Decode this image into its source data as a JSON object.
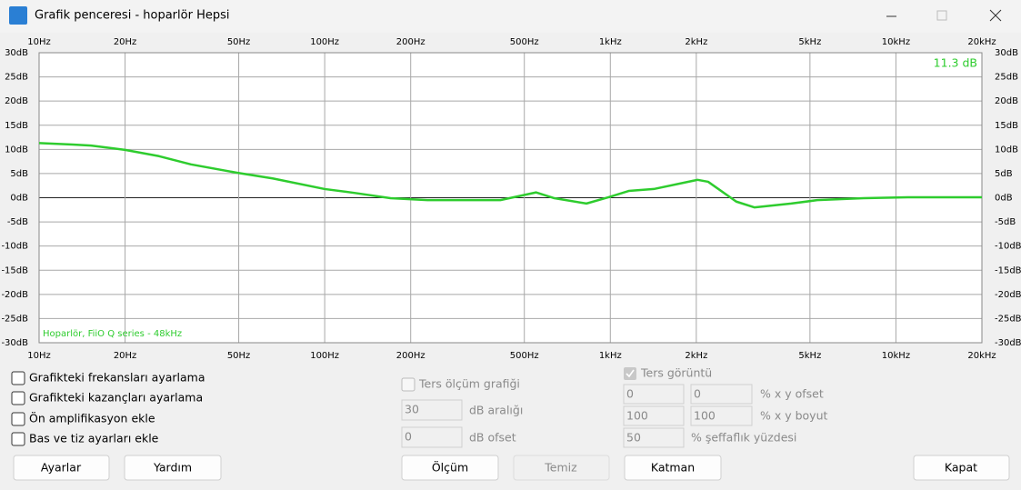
{
  "window": {
    "title": "Grafik penceresi - hoparlör Hepsi"
  },
  "chart_data": {
    "type": "line",
    "xscale": "log",
    "xlim": [
      10,
      20000
    ],
    "ylim": [
      -30,
      30
    ],
    "xticks": [
      {
        "value": 10,
        "label": "10Hz"
      },
      {
        "value": 20,
        "label": "20Hz"
      },
      {
        "value": 50,
        "label": "50Hz"
      },
      {
        "value": 100,
        "label": "100Hz"
      },
      {
        "value": 200,
        "label": "200Hz"
      },
      {
        "value": 500,
        "label": "500Hz"
      },
      {
        "value": 1000,
        "label": "1kHz"
      },
      {
        "value": 2000,
        "label": "2kHz"
      },
      {
        "value": 5000,
        "label": "5kHz"
      },
      {
        "value": 10000,
        "label": "10kHz"
      },
      {
        "value": 20000,
        "label": "20kHz"
      }
    ],
    "yticks": [
      {
        "value": 30,
        "label": "30dB"
      },
      {
        "value": 25,
        "label": "25dB"
      },
      {
        "value": 20,
        "label": "20dB"
      },
      {
        "value": 15,
        "label": "15dB"
      },
      {
        "value": 10,
        "label": "10dB"
      },
      {
        "value": 5,
        "label": "5dB"
      },
      {
        "value": 0,
        "label": "0dB"
      },
      {
        "value": -5,
        "label": "-5dB"
      },
      {
        "value": -10,
        "label": "-10dB"
      },
      {
        "value": -15,
        "label": "-15dB"
      },
      {
        "value": -20,
        "label": "-20dB"
      },
      {
        "value": -25,
        "label": "-25dB"
      },
      {
        "value": -30,
        "label": "-30dB"
      }
    ],
    "grid": true,
    "zero_line": true,
    "x": [
      10,
      13.1,
      15.2,
      20,
      26.3,
      34,
      49,
      65.7,
      100,
      127,
      170,
      229,
      412,
      493,
      550,
      637,
      825,
      986,
      1160,
      1420,
      2020,
      2200,
      2760,
      3200,
      4300,
      5300,
      7700,
      11000,
      20000
    ],
    "series": [
      {
        "name": "Hoparlör, FiiO Q series - 48kHz",
        "color": "#2ecc2e",
        "values": [
          11.3,
          11.0,
          10.8,
          9.9,
          8.6,
          6.9,
          5.2,
          4.0,
          1.8,
          1.0,
          -0.1,
          -0.5,
          -0.5,
          0.5,
          1.1,
          -0.1,
          -1.2,
          0.1,
          1.4,
          1.8,
          3.7,
          3.3,
          -0.8,
          -2.0,
          -1.2,
          -0.5,
          -0.1,
          0.1,
          0.1
        ]
      }
    ],
    "annotation": "11.3 dB"
  },
  "controls": {
    "checkboxes": [
      "Grafikteki frekansları ayarlama",
      "Grafikteki kazançları ayarlama",
      "Ön amplifikasyon ekle",
      "Bas ve tiz ayarları ekle"
    ],
    "inverse_graph": "Ters ölçüm grafiği",
    "db_range": {
      "value": 30,
      "label": "dB aralığı"
    },
    "db_offset": {
      "value": 0,
      "label": "dB ofset"
    },
    "inverse_view": "Ters görüntü",
    "xy_offset": {
      "x": 0,
      "y": 0,
      "label": "% x y ofset"
    },
    "xy_size": {
      "x": 100,
      "y": 100,
      "label": "% x y boyut"
    },
    "transparency": {
      "value": 50,
      "label": "% şeffaflık yüzdesi"
    },
    "buttons": [
      "Ayarlar",
      "Yardım",
      "Ölçüm",
      "Temiz",
      "Katman",
      "Kapat"
    ]
  }
}
